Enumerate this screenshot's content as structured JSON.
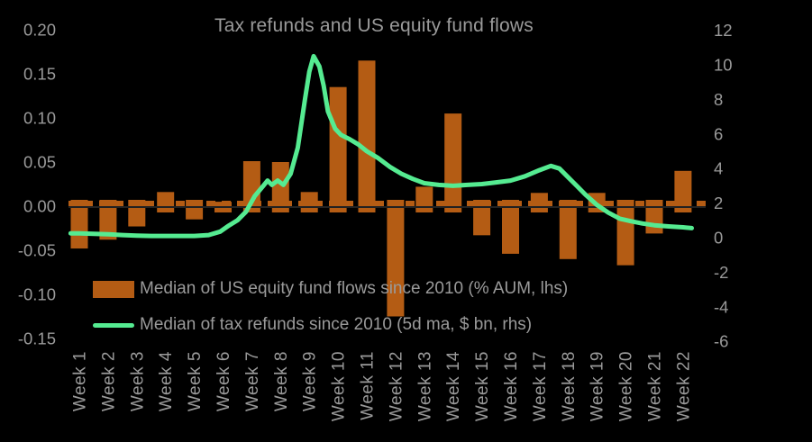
{
  "chart": {
    "title": "Tax refunds and US equity fund flows",
    "colors": {
      "background": "#000000",
      "bar": "#b45c14",
      "line": "#55eb91",
      "axis_text": "#9a9a9a",
      "zero_line": "#222222"
    },
    "legend": [
      {
        "swatch": "bar",
        "label": "Median of US equity fund flows since 2010 (% AUM, lhs)"
      },
      {
        "swatch": "line",
        "label": "Median of tax refunds since 2010 (5d ma, $ bn, rhs)"
      }
    ]
  },
  "chart_data": {
    "type": "bar",
    "title": "Tax refunds and US equity fund flows",
    "xlabel": "",
    "ylabel_left": "% AUM",
    "ylabel_right": "$ bn",
    "grid": false,
    "legend_position": "bottom-left",
    "categories": [
      "Week 1",
      "Week 2",
      "Week 3",
      "Week 4",
      "Week 5",
      "Week 6",
      "Week 7",
      "Week 8",
      "Week 9",
      "Week 10",
      "Week 11",
      "Week 12",
      "Week 13",
      "Week 14",
      "Week 15",
      "Week 16",
      "Week 17",
      "Week 18",
      "Week 19",
      "Week 20",
      "Week 21",
      "Week 22"
    ],
    "left_axis": {
      "ticks": [
        "0.20",
        "0.15",
        "0.10",
        "0.05",
        "0.00",
        "-0.05",
        "-0.10",
        "-0.15"
      ],
      "range": [
        -0.15,
        0.2
      ]
    },
    "right_axis": {
      "ticks": [
        "12",
        "10",
        "8",
        "6",
        "4",
        "2",
        "0",
        "-2",
        "-4",
        "-6"
      ],
      "range": [
        -6,
        12
      ]
    },
    "series": [
      {
        "name": "Median of US equity fund flows since 2010 (% AUM, lhs)",
        "type": "bar",
        "axis": "left",
        "values": [
          -0.048,
          -0.038,
          -0.023,
          0.016,
          -0.015,
          0.005,
          0.051,
          0.05,
          0.016,
          0.135,
          0.165,
          -0.125,
          0.022,
          0.105,
          -0.033,
          -0.054,
          0.015,
          -0.06,
          0.015,
          -0.067,
          -0.031,
          0.04
        ]
      },
      {
        "name": "Median of tax refunds since 2010 (5d ma, $ bn, rhs)",
        "type": "line",
        "axis": "right",
        "weekly_values": [
          0.25,
          0.2,
          0.12,
          0.1,
          0.1,
          0.35,
          2.8,
          3.05,
          9.6,
          5.9,
          5.0,
          3.7,
          3.15,
          3.0,
          3.1,
          3.3,
          3.9,
          3.5,
          1.9,
          0.95,
          0.72,
          0.6
        ],
        "points": [
          [
            0.7,
            0.25
          ],
          [
            1.0,
            0.25
          ],
          [
            1.5,
            0.22
          ],
          [
            2.0,
            0.2
          ],
          [
            2.5,
            0.15
          ],
          [
            3.0,
            0.12
          ],
          [
            3.5,
            0.1
          ],
          [
            4.0,
            0.1
          ],
          [
            4.5,
            0.1
          ],
          [
            5.0,
            0.1
          ],
          [
            5.5,
            0.15
          ],
          [
            5.9,
            0.35
          ],
          [
            6.2,
            0.7
          ],
          [
            6.5,
            1.0
          ],
          [
            6.8,
            1.5
          ],
          [
            7.1,
            2.4
          ],
          [
            7.4,
            3.0
          ],
          [
            7.55,
            3.3
          ],
          [
            7.7,
            3.05
          ],
          [
            7.9,
            3.3
          ],
          [
            8.1,
            3.05
          ],
          [
            8.35,
            3.7
          ],
          [
            8.6,
            5.2
          ],
          [
            8.85,
            8.0
          ],
          [
            9.0,
            9.6
          ],
          [
            9.15,
            10.5
          ],
          [
            9.35,
            9.9
          ],
          [
            9.5,
            8.8
          ],
          [
            9.65,
            7.3
          ],
          [
            9.9,
            6.3
          ],
          [
            10.1,
            5.95
          ],
          [
            10.4,
            5.7
          ],
          [
            10.7,
            5.4
          ],
          [
            11.0,
            5.0
          ],
          [
            11.4,
            4.6
          ],
          [
            11.8,
            4.1
          ],
          [
            12.2,
            3.7
          ],
          [
            12.6,
            3.4
          ],
          [
            13.0,
            3.15
          ],
          [
            13.5,
            3.05
          ],
          [
            14.0,
            3.0
          ],
          [
            14.5,
            3.05
          ],
          [
            15.0,
            3.1
          ],
          [
            15.5,
            3.2
          ],
          [
            16.0,
            3.3
          ],
          [
            16.5,
            3.55
          ],
          [
            17.0,
            3.9
          ],
          [
            17.4,
            4.15
          ],
          [
            17.7,
            4.0
          ],
          [
            18.0,
            3.5
          ],
          [
            18.3,
            3.0
          ],
          [
            18.6,
            2.5
          ],
          [
            19.0,
            1.9
          ],
          [
            19.4,
            1.45
          ],
          [
            19.8,
            1.1
          ],
          [
            20.2,
            0.95
          ],
          [
            20.6,
            0.82
          ],
          [
            21.0,
            0.72
          ],
          [
            21.5,
            0.65
          ],
          [
            22.0,
            0.6
          ],
          [
            22.3,
            0.55
          ]
        ]
      }
    ]
  }
}
